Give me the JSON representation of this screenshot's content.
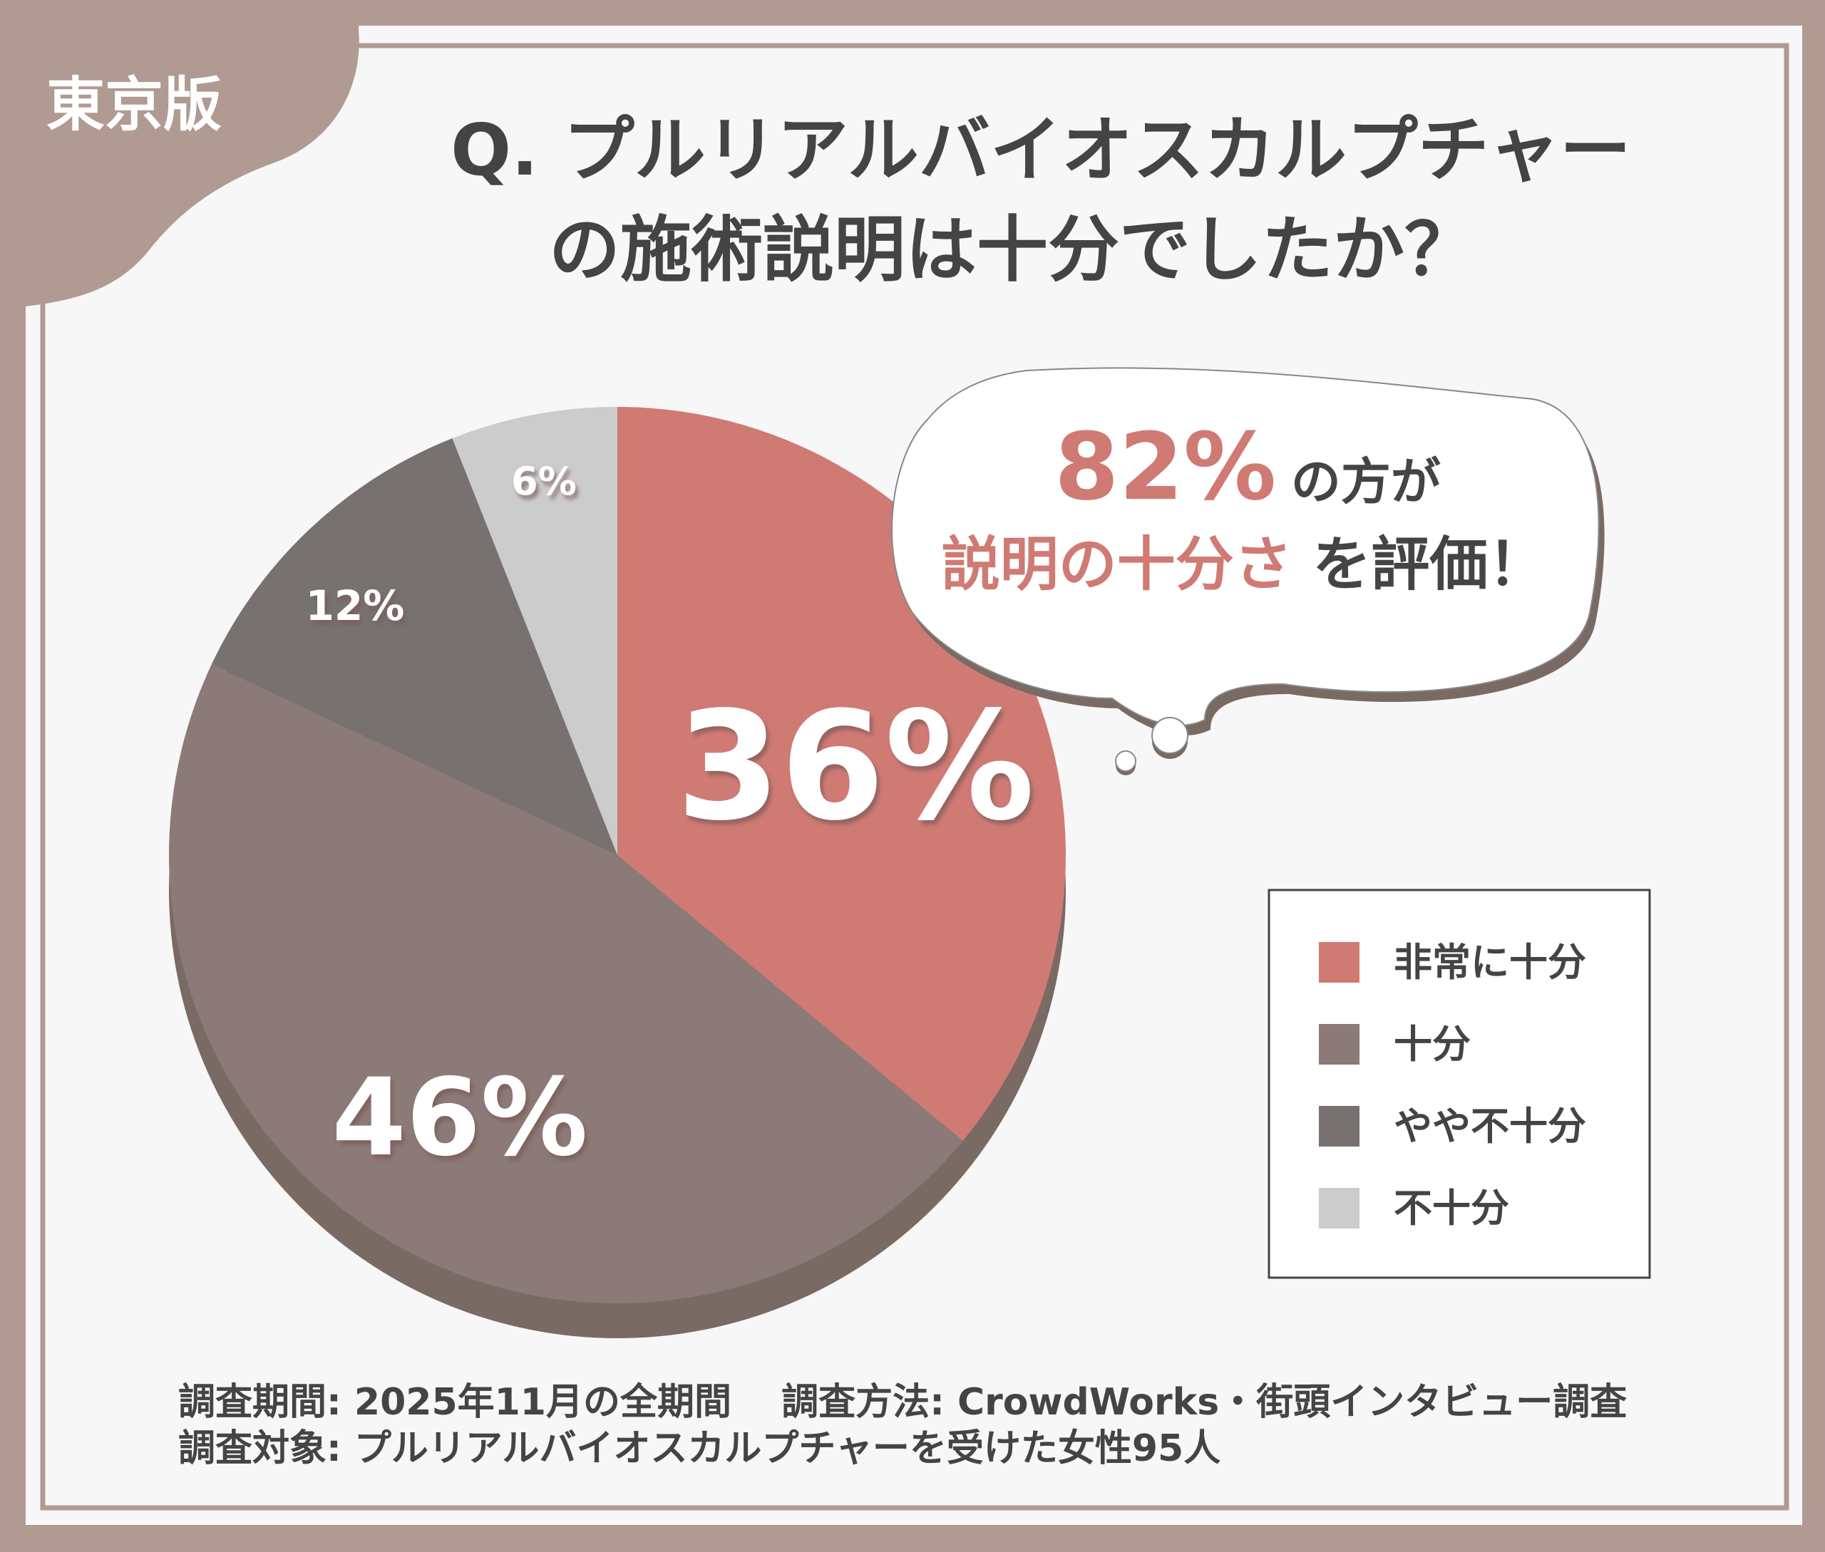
{
  "badge": "東京版",
  "title": {
    "line1": "Q. プルリアルバイオスカルプチャー",
    "line2": "の施術説明は十分でしたか？"
  },
  "bubble": {
    "highlight_percent": "82%",
    "line1_rest": "の方が",
    "line2_highlight": "説明の十分さ",
    "line2_rest": "を評価！"
  },
  "chart_data": {
    "type": "pie",
    "title": "Q. プルリアルバイオスカルプチャーの施術説明は十分でしたか？",
    "categories": [
      "非常に十分",
      "十分",
      "やや不十分",
      "不十分"
    ],
    "values": [
      36,
      46,
      12,
      6
    ],
    "labels": [
      "36%",
      "46%",
      "12%",
      "6%"
    ],
    "colors": [
      "#d07a74",
      "#8c7a78",
      "#777170",
      "#cccccc"
    ],
    "start": "top, clockwise",
    "legend_placement": "right"
  },
  "footer": {
    "line1": "調査期間:  2025年11月の全期間　 調査方法: CrowdWorks・街頭インタビュー調査",
    "line2": "調査対象: プルリアルバイオスカルプチャーを受けた女性95人"
  },
  "colors": {
    "frame": "#b09a92",
    "accent": "#d07a74",
    "text": "#444444"
  }
}
